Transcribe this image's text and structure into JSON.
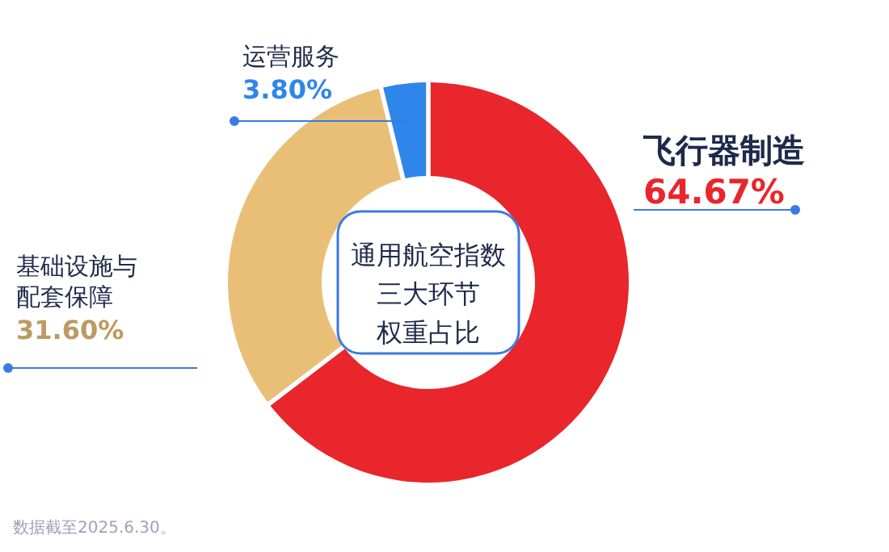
{
  "chart_data": {
    "type": "donut",
    "title": "通用航空指数三大环节权重占比",
    "categories": [
      "飞行器制造",
      "基础设施与配套保障",
      "运营服务"
    ],
    "values": [
      64.67,
      31.6,
      3.8
    ],
    "value_labels": [
      "64.67%",
      "31.60%",
      "3.80%"
    ],
    "colors": [
      "#e8262b",
      "#e9bf78",
      "#2f86ea"
    ],
    "annotations": [
      "数据截至2025.6.30。"
    ]
  }
}
